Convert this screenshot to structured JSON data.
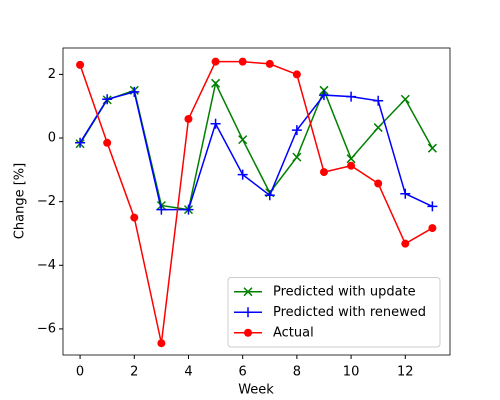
{
  "chart_data": {
    "type": "line",
    "x_label": "Week",
    "y_label": "Change [%]",
    "x": [
      0,
      1,
      2,
      3,
      4,
      5,
      6,
      7,
      8,
      9,
      10,
      11,
      12,
      13
    ],
    "series": [
      {
        "name": "Predicted with update",
        "color": "#008000",
        "marker": "x",
        "values": [
          -0.18,
          1.2,
          1.5,
          -2.12,
          -2.25,
          1.72,
          -0.05,
          -1.72,
          -0.6,
          1.5,
          -0.65,
          0.33,
          1.22,
          -0.32
        ]
      },
      {
        "name": "Predicted with renewed",
        "color": "#0000ff",
        "marker": "+",
        "values": [
          -0.15,
          1.22,
          1.45,
          -2.25,
          -2.25,
          0.45,
          -1.15,
          -1.8,
          0.25,
          1.35,
          1.3,
          1.17,
          -1.75,
          -2.15
        ]
      },
      {
        "name": "Actual",
        "color": "#ff0000",
        "marker": "o",
        "values": [
          2.3,
          -0.15,
          -2.5,
          -6.45,
          0.6,
          2.4,
          2.4,
          2.33,
          2.0,
          -1.07,
          -0.87,
          -1.43,
          -3.32,
          -2.83
        ]
      }
    ],
    "xlim": [
      -0.63,
      13.65
    ],
    "ylim": [
      -6.82,
      2.83
    ],
    "xticks": [
      0,
      2,
      4,
      6,
      8,
      10,
      12
    ],
    "yticks": [
      {
        "value": -6,
        "label": "−6"
      },
      {
        "value": -4,
        "label": "−4"
      },
      {
        "value": -2,
        "label": "−2"
      },
      0,
      2
    ],
    "legend": "lower right",
    "grid": false
  }
}
